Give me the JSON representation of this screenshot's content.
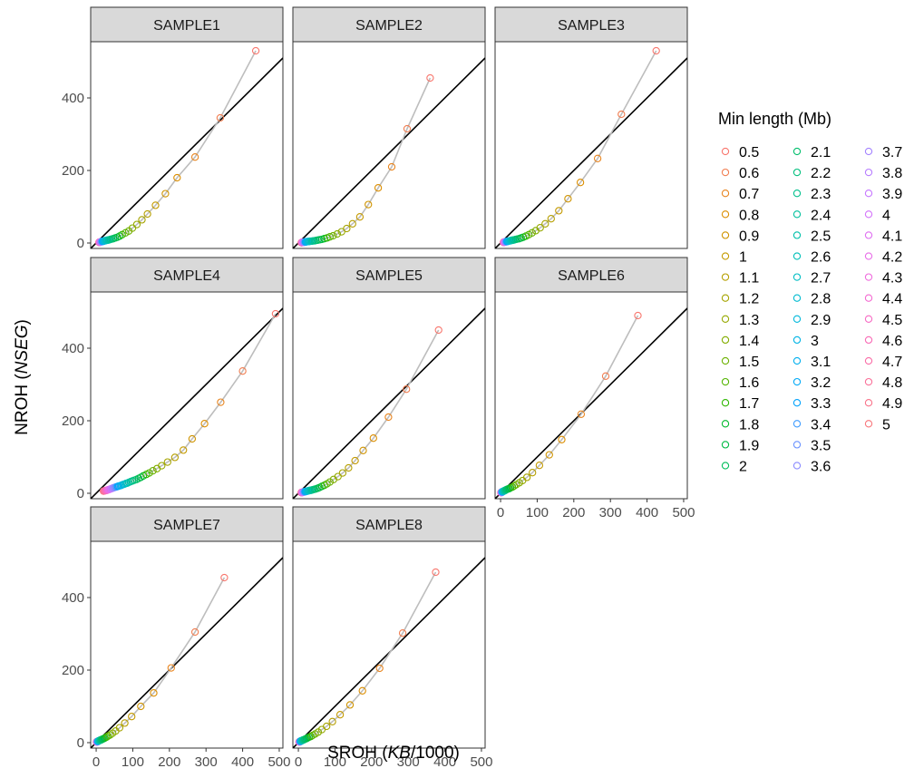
{
  "chart_data": {
    "type": "scatter",
    "title": "",
    "xlabel_main": "SROH (",
    "xlabel_italic": "KB",
    "xlabel_tail": "/1000)",
    "ylabel_main": "NROH (",
    "ylabel_italic": "NSEG",
    "ylabel_tail": ")",
    "xlim": [
      -15,
      510
    ],
    "ylim": [
      -15,
      555
    ],
    "x_ticks": [
      0,
      100,
      200,
      300,
      400,
      500
    ],
    "y_ticks": [
      0,
      200,
      400
    ],
    "reference_line": {
      "slope": 1,
      "intercept": 0
    },
    "legend": {
      "title": "Min length (Mb)",
      "position": "right",
      "entries": [
        "0.5",
        "0.6",
        "0.7",
        "0.8",
        "0.9",
        "1",
        "1.1",
        "1.2",
        "1.3",
        "1.4",
        "1.5",
        "1.6",
        "1.7",
        "1.8",
        "1.9",
        "2",
        "2.1",
        "2.2",
        "2.3",
        "2.4",
        "2.5",
        "2.6",
        "2.7",
        "2.8",
        "2.9",
        "3",
        "3.1",
        "3.2",
        "3.3",
        "3.4",
        "3.5",
        "3.6",
        "3.7",
        "3.8",
        "3.9",
        "4",
        "4.1",
        "4.2",
        "4.3",
        "4.4",
        "4.5",
        "4.6",
        "4.7",
        "4.8",
        "4.9",
        "5"
      ]
    },
    "colors": [
      "#F8766D",
      "#F17D50",
      "#E8851F",
      "#DC8E00",
      "#D09400",
      "#C49A00",
      "#B69F00",
      "#A6A400",
      "#96A900",
      "#83AD00",
      "#6CB100",
      "#53B400",
      "#2EB700",
      "#00B92A",
      "#00BB44",
      "#00BD5A",
      "#00BE6C",
      "#00BF7D",
      "#00C08D",
      "#00C09C",
      "#00C0AA",
      "#00BFB8",
      "#00BDC4",
      "#00BBD0",
      "#00B8DB",
      "#00B4E5",
      "#00AFEE",
      "#00A9F6",
      "#00A2FC",
      "#3D9BFF",
      "#6B93FF",
      "#8B8BFF",
      "#A483FF",
      "#B77DFF",
      "#C677FF",
      "#D373FA",
      "#DF70F1",
      "#E86EE8",
      "#EF6CDD",
      "#F46AD1",
      "#F76AC3",
      "#F96BB6",
      "#FA6DA7",
      "#FA7099",
      "#F9738A",
      "#F8767B"
    ],
    "series": [
      {
        "name": "SAMPLE1",
        "x": [
          436,
          339,
          270,
          221,
          189,
          162,
          140,
          125,
          111,
          99,
          89,
          80,
          71,
          64,
          58,
          52,
          47,
          43,
          39,
          36,
          33,
          30,
          28,
          26,
          24,
          22,
          21,
          19,
          18,
          17,
          16,
          15,
          14,
          13,
          12,
          12,
          11,
          11,
          10,
          10,
          9,
          9,
          9,
          8,
          8,
          8
        ],
        "y": [
          530,
          345,
          237,
          180,
          136,
          104,
          80,
          64,
          51,
          41,
          33,
          28,
          23,
          19,
          16,
          14,
          12,
          11,
          10,
          9,
          8,
          8,
          7,
          7,
          6,
          6,
          5,
          5,
          5,
          4,
          4,
          4,
          4,
          3,
          3,
          3,
          3,
          3,
          2,
          2,
          2,
          2,
          2,
          2,
          2,
          2
        ]
      },
      {
        "name": "SAMPLE2",
        "x": [
          360,
          297,
          255,
          218,
          191,
          168,
          148,
          132,
          118,
          106,
          95,
          86,
          78,
          71,
          64,
          58,
          53,
          48,
          44,
          40,
          37,
          34,
          31,
          29,
          27,
          25,
          23,
          21,
          20,
          19,
          18,
          17,
          16,
          15,
          14,
          13,
          12,
          12,
          11,
          11,
          10,
          10,
          9,
          9,
          9,
          8
        ],
        "y": [
          455,
          315,
          210,
          152,
          106,
          72,
          53,
          40,
          31,
          25,
          20,
          17,
          14,
          12,
          10,
          9,
          8,
          7,
          6,
          6,
          5,
          5,
          5,
          4,
          4,
          4,
          4,
          3,
          3,
          3,
          3,
          3,
          2,
          2,
          2,
          2,
          2,
          2,
          2,
          2,
          2,
          1,
          1,
          1,
          1,
          1
        ]
      },
      {
        "name": "SAMPLE3",
        "x": [
          425,
          330,
          265,
          218,
          184,
          159,
          138,
          122,
          108,
          96,
          86,
          77,
          69,
          62,
          56,
          51,
          46,
          42,
          38,
          35,
          32,
          30,
          28,
          26,
          24,
          22,
          21,
          19,
          18,
          17,
          16,
          15,
          14,
          13,
          12,
          12,
          11,
          11,
          10,
          10,
          9,
          9,
          9,
          8,
          8,
          8
        ],
        "y": [
          530,
          355,
          233,
          167,
          122,
          89,
          67,
          53,
          42,
          34,
          28,
          23,
          19,
          16,
          14,
          12,
          11,
          10,
          9,
          8,
          8,
          7,
          7,
          6,
          6,
          5,
          5,
          5,
          4,
          4,
          4,
          4,
          3,
          3,
          3,
          3,
          3,
          3,
          2,
          2,
          2,
          2,
          2,
          2,
          2,
          2
        ]
      },
      {
        "name": "SAMPLE4",
        "x": [
          490,
          400,
          340,
          296,
          262,
          238,
          215,
          195,
          179,
          166,
          155,
          145,
          137,
          129,
          122,
          116,
          110,
          104,
          99,
          94,
          89,
          85,
          81,
          77,
          73,
          69,
          66,
          62,
          59,
          56,
          53,
          50,
          47,
          45,
          42,
          40,
          37,
          35,
          33,
          31,
          29,
          27,
          25,
          23,
          21,
          20
        ],
        "y": [
          495,
          337,
          251,
          192,
          150,
          119,
          99,
          86,
          76,
          68,
          62,
          56,
          52,
          48,
          44,
          41,
          38,
          36,
          34,
          32,
          30,
          28,
          27,
          25,
          24,
          22,
          21,
          20,
          19,
          18,
          17,
          16,
          15,
          14,
          13,
          12,
          11,
          10,
          10,
          9,
          8,
          8,
          7,
          7,
          6,
          6
        ]
      },
      {
        "name": "SAMPLE5",
        "x": [
          383,
          295,
          246,
          205,
          177,
          155,
          137,
          121,
          108,
          96,
          86,
          78,
          71,
          64,
          58,
          53,
          48,
          44,
          40,
          37,
          34,
          31,
          29,
          27,
          25,
          23,
          22,
          20,
          19,
          18,
          17,
          16,
          15,
          14,
          13,
          12,
          12,
          11,
          11,
          10,
          10,
          9,
          9,
          9,
          8,
          8
        ],
        "y": [
          450,
          287,
          210,
          152,
          118,
          90,
          70,
          56,
          46,
          38,
          31,
          26,
          22,
          19,
          16,
          14,
          12,
          11,
          10,
          9,
          8,
          8,
          7,
          7,
          6,
          6,
          5,
          5,
          5,
          4,
          4,
          4,
          4,
          3,
          3,
          3,
          3,
          3,
          2,
          2,
          2,
          2,
          2,
          2,
          2,
          2
        ]
      },
      {
        "name": "SAMPLE6",
        "x": [
          375,
          287,
          220,
          167,
          133,
          106,
          87,
          72,
          60,
          51,
          43,
          37,
          32,
          27,
          24,
          21,
          18,
          16,
          14,
          13,
          11,
          10,
          9,
          8,
          7,
          6,
          6,
          5,
          5,
          4,
          4,
          4,
          3,
          3,
          3,
          3,
          2,
          2,
          2,
          2,
          2,
          2,
          2,
          1,
          1,
          1
        ],
        "y": [
          490,
          323,
          218,
          148,
          106,
          77,
          57,
          44,
          35,
          29,
          24,
          20,
          17,
          15,
          13,
          12,
          11,
          10,
          9,
          8,
          7,
          7,
          6,
          6,
          5,
          5,
          5,
          4,
          4,
          4,
          4,
          3,
          3,
          3,
          3,
          3,
          3,
          2,
          2,
          2,
          2,
          2,
          2,
          2,
          2,
          2
        ]
      },
      {
        "name": "SAMPLE7",
        "x": [
          350,
          270,
          205,
          157,
          122,
          97,
          78,
          64,
          53,
          45,
          38,
          32,
          28,
          24,
          21,
          18,
          16,
          14,
          13,
          11,
          10,
          9,
          8,
          7,
          7,
          6,
          5,
          5,
          5,
          4,
          4,
          4,
          3,
          3,
          3,
          3,
          2,
          2,
          2,
          2,
          2,
          2,
          2,
          1,
          1,
          1
        ],
        "y": [
          455,
          305,
          206,
          137,
          100,
          72,
          54,
          41,
          32,
          26,
          21,
          18,
          15,
          13,
          11,
          10,
          9,
          8,
          7,
          7,
          6,
          6,
          5,
          5,
          5,
          4,
          4,
          4,
          4,
          3,
          3,
          3,
          3,
          3,
          3,
          2,
          2,
          2,
          2,
          2,
          2,
          2,
          2,
          2,
          2,
          2
        ]
      },
      {
        "name": "SAMPLE8",
        "x": [
          375,
          285,
          222,
          175,
          141,
          114,
          93,
          77,
          64,
          54,
          46,
          39,
          34,
          29,
          25,
          22,
          19,
          17,
          15,
          13,
          12,
          11,
          10,
          9,
          8,
          7,
          7,
          6,
          6,
          5,
          5,
          5,
          4,
          4,
          4,
          4,
          3,
          3,
          3,
          3,
          3,
          3,
          2,
          2,
          2,
          2
        ],
        "y": [
          470,
          302,
          205,
          143,
          104,
          77,
          58,
          45,
          36,
          29,
          24,
          20,
          17,
          15,
          13,
          11,
          10,
          9,
          8,
          7,
          7,
          6,
          6,
          5,
          5,
          5,
          4,
          4,
          4,
          4,
          3,
          3,
          3,
          3,
          3,
          3,
          2,
          2,
          2,
          2,
          2,
          2,
          2,
          2,
          2,
          2
        ]
      }
    ]
  }
}
